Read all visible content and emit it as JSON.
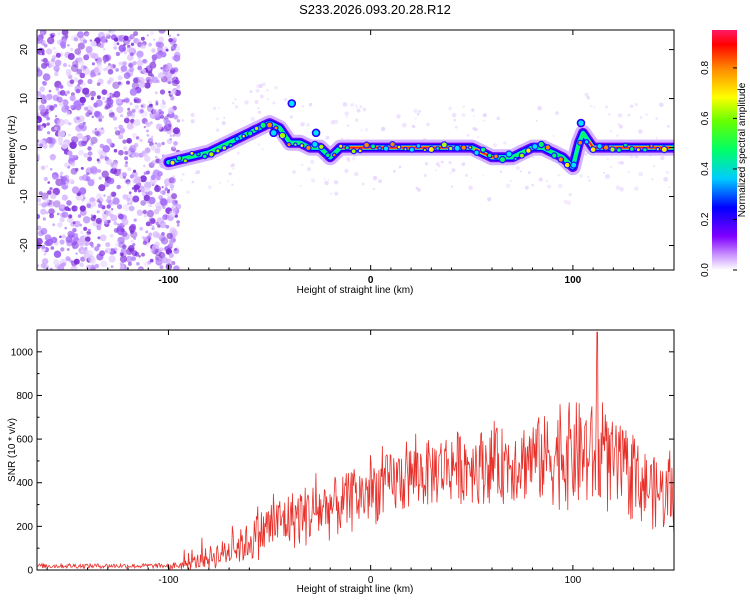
{
  "title": "S233.2026.093.20.28.R12",
  "colors": {
    "snr_line": "#e8302a",
    "frame": "#000000",
    "spectrogram_noise": "#8a3fe0",
    "spectrogram_core": "#ff1a1a"
  },
  "chart_data": [
    {
      "type": "heatmap",
      "name": "spectrogram",
      "xlabel": "Height of straight line (km)",
      "ylabel": "Frequency (Hz)",
      "xlim": [
        -165,
        150
      ],
      "ylim": [
        -25,
        24
      ],
      "x_ticks": [
        -100,
        0,
        100
      ],
      "x_tick_labels": [
        "-100",
        "0",
        "100"
      ],
      "y_ticks": [
        20,
        10,
        0,
        -10,
        -20
      ],
      "y_tick_labels": [
        "20",
        "10",
        "0",
        "-10",
        "-20"
      ],
      "colorbar": {
        "label": "Normalized spectral amplitude",
        "range": [
          0,
          0.95
        ],
        "ticks": [
          0.0,
          0.2,
          0.4,
          0.6,
          0.8
        ],
        "tick_labels": [
          "0.0",
          "0.2",
          "0.4",
          "0.6",
          "0.8"
        ]
      },
      "ridge": {
        "x": [
          -100,
          -90,
          -80,
          -70,
          -60,
          -55,
          -50,
          -45,
          -40,
          -35,
          -30,
          -25,
          -20,
          -15,
          -10,
          0,
          10,
          20,
          30,
          40,
          50,
          55,
          60,
          65,
          70,
          75,
          80,
          85,
          90,
          95,
          100,
          103,
          105,
          110,
          115,
          120,
          125,
          130,
          135,
          140,
          145,
          150
        ],
        "y": [
          -3,
          -2,
          -1,
          1,
          3,
          4,
          5,
          4,
          1,
          1,
          0,
          0,
          -2,
          0,
          0,
          0,
          0,
          0,
          0,
          0,
          0,
          -1,
          -2,
          -2,
          -2,
          -1,
          0,
          0,
          -1,
          -2,
          -4,
          1,
          3,
          0,
          0,
          0,
          0,
          0,
          0,
          0,
          0,
          0
        ]
      }
    },
    {
      "type": "line",
      "name": "snr",
      "xlabel": "Height of straight line (km)",
      "ylabel": "SNR (10 * v/v)",
      "xlim": [
        -165,
        150
      ],
      "ylim": [
        0,
        1100
      ],
      "x_ticks": [
        -100,
        0,
        100
      ],
      "x_tick_labels": [
        "-100",
        "0",
        "100"
      ],
      "y_ticks": [
        0,
        200,
        400,
        600,
        800,
        1000
      ],
      "y_tick_labels": [
        "0",
        "200",
        "400",
        "600",
        "800",
        "1000"
      ],
      "envelope": {
        "x": [
          -165,
          -100,
          -90,
          -80,
          -70,
          -60,
          -50,
          -40,
          -30,
          -20,
          -10,
          0,
          10,
          20,
          30,
          40,
          50,
          60,
          70,
          80,
          90,
          100,
          110,
          120,
          130,
          140,
          150
        ],
        "upper": [
          30,
          30,
          50,
          110,
          150,
          220,
          320,
          360,
          400,
          420,
          450,
          500,
          540,
          580,
          600,
          640,
          640,
          650,
          660,
          700,
          720,
          780,
          760,
          680,
          600,
          520,
          480
        ],
        "lower": [
          0,
          0,
          0,
          0,
          10,
          30,
          60,
          90,
          100,
          130,
          160,
          200,
          230,
          260,
          280,
          300,
          300,
          300,
          300,
          300,
          280,
          260,
          250,
          240,
          220,
          180,
          150
        ]
      },
      "peak": {
        "x": 112,
        "value": 1090
      }
    }
  ]
}
